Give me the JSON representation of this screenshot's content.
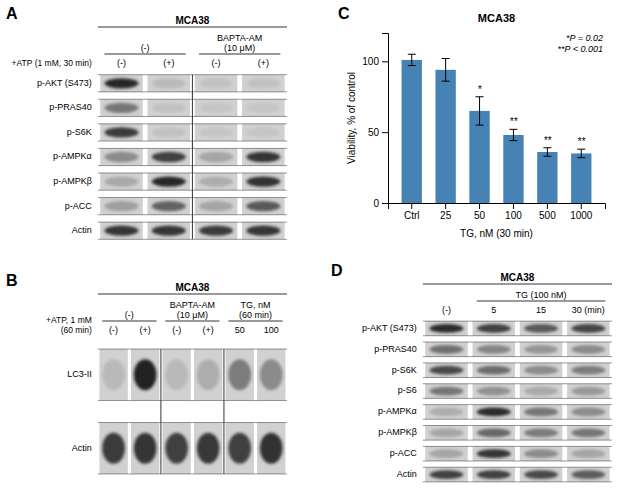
{
  "chart_data": [
    {
      "type": "blot",
      "panel": "A",
      "title": "MCA38",
      "annotation": "+ATP (1 mM, 30 min)",
      "column_groups": [
        {
          "label": "(-)",
          "span": 2
        },
        {
          "label": "BAPTA-AM\n(10 μM)",
          "span": 2
        }
      ],
      "column_labels": [
        "(-)",
        "(+)",
        "(-)",
        "(+)"
      ],
      "row_labels": [
        "p-AKT (S473)",
        "p-PRAS40",
        "p-S6K",
        "p-AMPKα",
        "p-AMPKβ",
        "p-ACC",
        "Actin"
      ],
      "cells": [
        [
          0.85,
          0.12,
          0.08,
          0.08
        ],
        [
          0.45,
          0.08,
          0.06,
          0.06
        ],
        [
          0.75,
          0.08,
          0.06,
          0.06
        ],
        [
          0.35,
          0.72,
          0.22,
          0.78
        ],
        [
          0.2,
          0.85,
          0.18,
          0.8
        ],
        [
          0.25,
          0.55,
          0.22,
          0.6
        ],
        [
          0.78,
          0.78,
          0.75,
          0.78
        ]
      ]
    },
    {
      "type": "blot",
      "panel": "B",
      "title": "MCA38",
      "annotation": "+ATP, 1 mM\n(60 min)",
      "column_groups": [
        {
          "label": "(-)",
          "span": 2
        },
        {
          "label": "BAPTA-AM\n(10 μM)",
          "span": 2
        },
        {
          "label": "TG, nM\n(60 min)",
          "span": 2
        }
      ],
      "column_labels": [
        "(-)",
        "(+)",
        "(-)",
        "(+)",
        "50",
        "100"
      ],
      "row_labels": [
        "LC3-II",
        "Actin"
      ],
      "cells": [
        [
          0.12,
          0.88,
          0.12,
          0.18,
          0.42,
          0.35
        ],
        [
          0.75,
          0.78,
          0.72,
          0.76,
          0.72,
          0.8
        ]
      ]
    },
    {
      "type": "bar",
      "panel": "C",
      "title": "MCA38",
      "xlabel": "TG, nM (30 min)",
      "ylabel": "Viability, % of control",
      "categories": [
        "Ctrl",
        "25",
        "50",
        "100",
        "500",
        "1000"
      ],
      "values": [
        101,
        94,
        65,
        48,
        36,
        35
      ],
      "errors": [
        4,
        8,
        10,
        4,
        3,
        3
      ],
      "sig_labels": [
        null,
        null,
        "*",
        "**",
        "**",
        "**"
      ],
      "annotation": "*P = 0.02\n**P < 0.001",
      "ylim": [
        0,
        120
      ],
      "yticks": [
        0,
        50,
        100
      ]
    },
    {
      "type": "blot",
      "panel": "D",
      "title": "MCA38",
      "column_groups": [
        {
          "label": null,
          "span": 1
        },
        {
          "label": "TG (100 nM)",
          "span": 3
        }
      ],
      "column_labels": [
        "(-)",
        "5",
        "15",
        "30 (min)"
      ],
      "row_labels": [
        "p-AKT (S473)",
        "p-PRAS40",
        "p-S6K",
        "p-S6",
        "p-AMPKα",
        "p-AMPKβ",
        "p-ACC",
        "Actin"
      ],
      "cells": [
        [
          0.82,
          0.72,
          0.6,
          0.7
        ],
        [
          0.48,
          0.38,
          0.3,
          0.35
        ],
        [
          0.68,
          0.5,
          0.35,
          0.42
        ],
        [
          0.45,
          0.32,
          0.2,
          0.28
        ],
        [
          0.18,
          0.82,
          0.45,
          0.35
        ],
        [
          0.22,
          0.52,
          0.42,
          0.45
        ],
        [
          0.22,
          0.78,
          0.35,
          0.22
        ],
        [
          0.72,
          0.72,
          0.68,
          0.58
        ]
      ]
    }
  ]
}
